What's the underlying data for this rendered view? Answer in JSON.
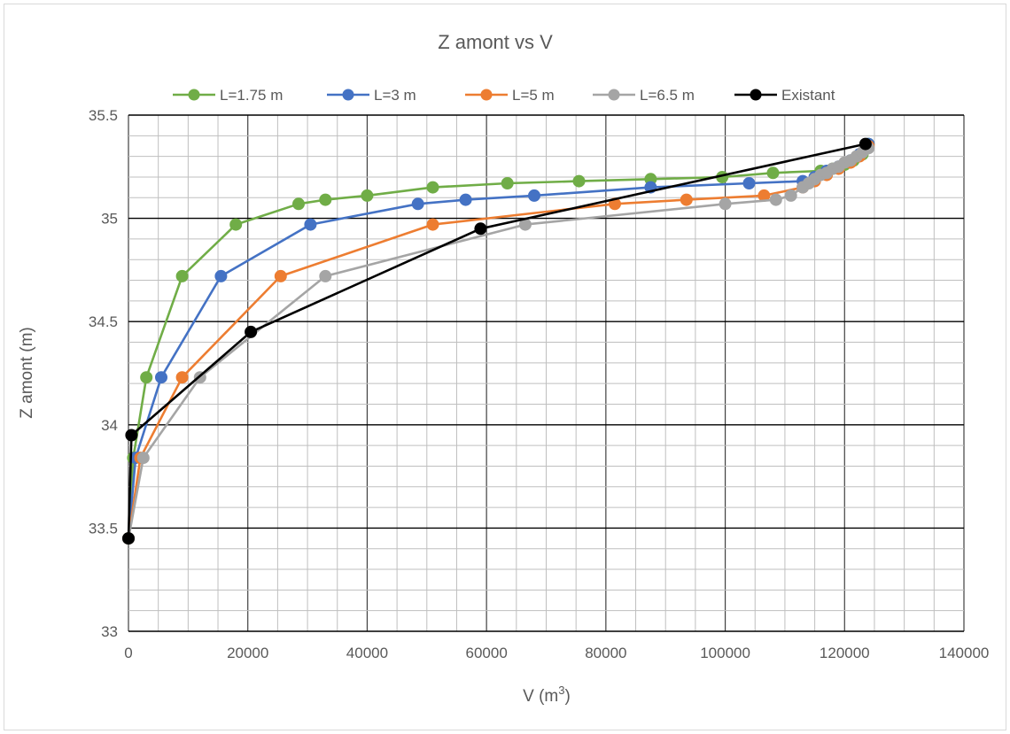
{
  "chart_data": {
    "type": "line",
    "title": "Z amont vs V",
    "xlabel": "V (m",
    "xlabel_sup": "3",
    "xlabel_end": ")",
    "ylabel": "Z amont (m)",
    "xlim": [
      0,
      140000
    ],
    "ylim": [
      33,
      35.5
    ],
    "x_major": 20000,
    "x_minor": 5000,
    "y_major": 0.5,
    "y_minor": 0.1,
    "x_ticks": [
      "0",
      "20000",
      "40000",
      "60000",
      "80000",
      "100000",
      "120000",
      "140000"
    ],
    "y_ticks": [
      "33",
      "33.5",
      "34",
      "34.5",
      "35",
      "35.5"
    ],
    "grid": true,
    "legend_position": "top",
    "series": [
      {
        "name": "L=1.75 m",
        "color": "#70ad47",
        "points": [
          [
            0,
            33.45
          ],
          [
            800,
            33.84
          ],
          [
            3000,
            34.23
          ],
          [
            9000,
            34.72
          ],
          [
            18000,
            34.97
          ],
          [
            28500,
            35.07
          ],
          [
            33000,
            35.09
          ],
          [
            40000,
            35.11
          ],
          [
            51000,
            35.15
          ],
          [
            63500,
            35.17
          ],
          [
            75500,
            35.18
          ],
          [
            87500,
            35.19
          ],
          [
            99500,
            35.2
          ],
          [
            108000,
            35.22
          ],
          [
            116000,
            35.23
          ],
          [
            118000,
            35.24
          ],
          [
            120000,
            35.26
          ],
          [
            121500,
            35.28
          ],
          [
            123000,
            35.31
          ],
          [
            124000,
            35.36
          ]
        ]
      },
      {
        "name": "L=3 m",
        "color": "#4472c4",
        "points": [
          [
            0,
            33.45
          ],
          [
            1200,
            33.84
          ],
          [
            5500,
            34.23
          ],
          [
            15500,
            34.72
          ],
          [
            30500,
            34.97
          ],
          [
            48500,
            35.07
          ],
          [
            56500,
            35.09
          ],
          [
            68000,
            35.11
          ],
          [
            87500,
            35.15
          ],
          [
            104000,
            35.17
          ],
          [
            113000,
            35.18
          ],
          [
            115000,
            35.2
          ],
          [
            117000,
            35.23
          ],
          [
            119000,
            35.25
          ],
          [
            121000,
            35.28
          ],
          [
            122500,
            35.31
          ],
          [
            124000,
            35.36
          ]
        ]
      },
      {
        "name": "L=5 m",
        "color": "#ed7d31",
        "points": [
          [
            0,
            33.45
          ],
          [
            2000,
            33.84
          ],
          [
            9000,
            34.23
          ],
          [
            25500,
            34.72
          ],
          [
            51000,
            34.97
          ],
          [
            81500,
            35.07
          ],
          [
            93500,
            35.09
          ],
          [
            106500,
            35.11
          ],
          [
            113000,
            35.15
          ],
          [
            115000,
            35.18
          ],
          [
            117000,
            35.21
          ],
          [
            119000,
            35.24
          ],
          [
            121000,
            35.27
          ],
          [
            122500,
            35.3
          ],
          [
            124000,
            35.35
          ]
        ]
      },
      {
        "name": "L=6.5 m",
        "color": "#a5a5a5",
        "points": [
          [
            0,
            33.45
          ],
          [
            2500,
            33.84
          ],
          [
            12000,
            34.23
          ],
          [
            33000,
            34.72
          ],
          [
            66500,
            34.97
          ],
          [
            100000,
            35.07
          ],
          [
            108500,
            35.09
          ],
          [
            111000,
            35.11
          ],
          [
            113000,
            35.15
          ],
          [
            114000,
            35.17
          ],
          [
            115000,
            35.19
          ],
          [
            116000,
            35.21
          ],
          [
            117000,
            35.22
          ],
          [
            118000,
            35.24
          ],
          [
            119000,
            35.25
          ],
          [
            120000,
            35.27
          ],
          [
            121000,
            35.28
          ],
          [
            122000,
            35.3
          ],
          [
            123000,
            35.32
          ],
          [
            124000,
            35.34
          ]
        ]
      },
      {
        "name": "Existant",
        "color": "#000000",
        "points": [
          [
            0,
            33.45
          ],
          [
            500,
            33.95
          ],
          [
            20500,
            34.45
          ],
          [
            59000,
            34.95
          ],
          [
            123500,
            35.36
          ]
        ]
      }
    ]
  }
}
